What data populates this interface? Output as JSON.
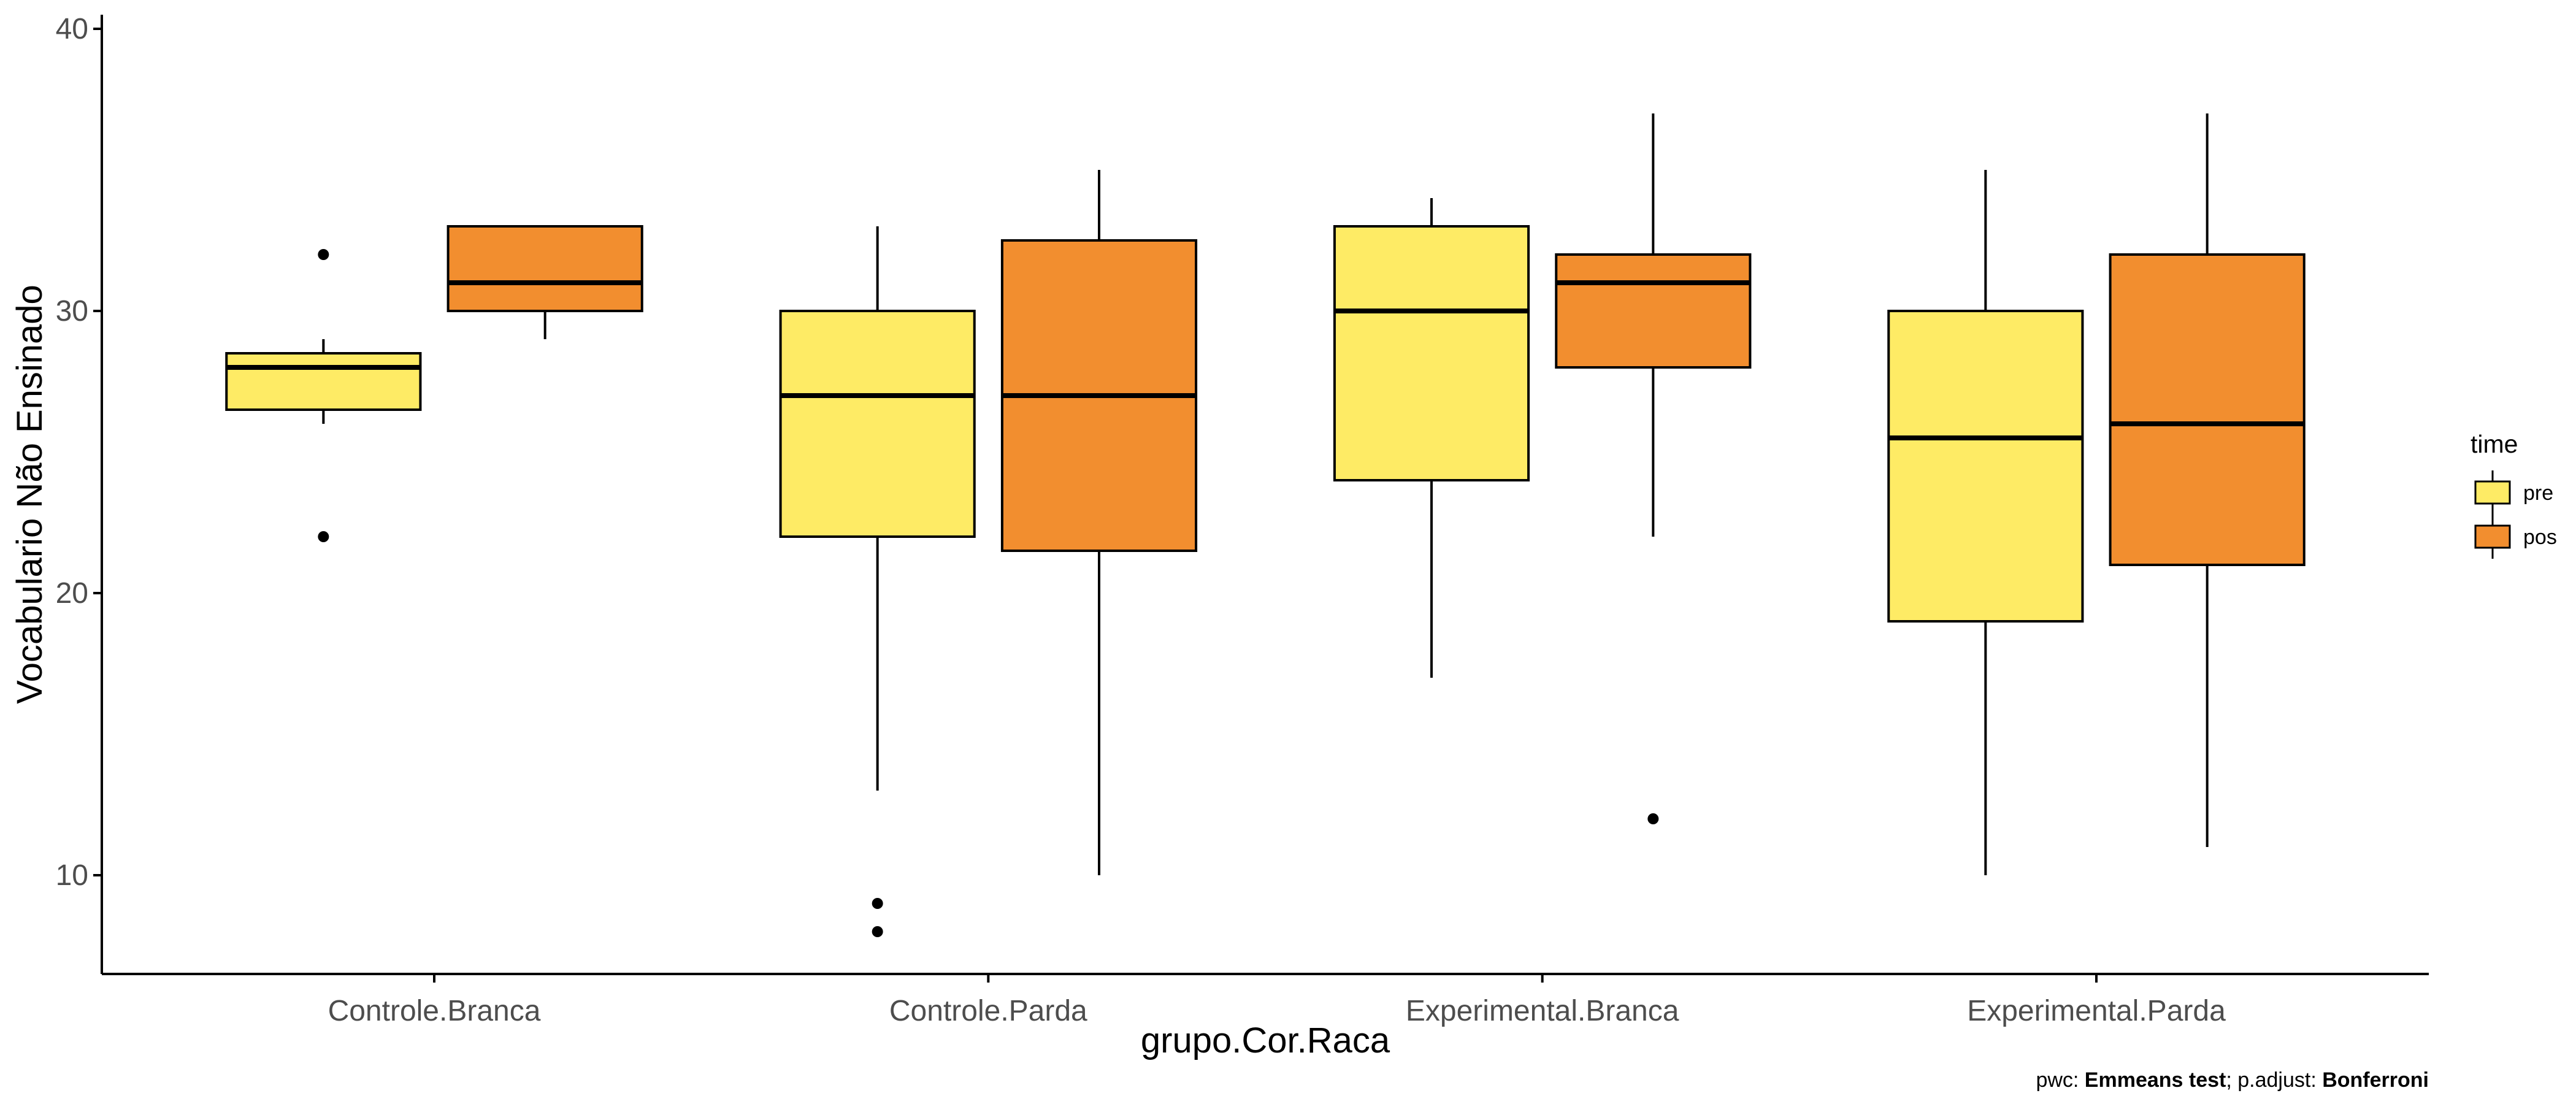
{
  "chart_data": {
    "type": "boxplot",
    "xlabel": "grupo.Cor.Raca",
    "ylabel": "Vocabulario Não Ensinado",
    "categories": [
      "Controle.Branca",
      "Controle.Parda",
      "Experimental.Branca",
      "Experimental.Parda"
    ],
    "ylim": [
      6.5,
      40.5
    ],
    "yticks": [
      10,
      20,
      30,
      40
    ],
    "grid": false,
    "legend": {
      "title": "time",
      "placement": "right",
      "entries": [
        {
          "key": "pre",
          "label": "pre",
          "color": "#FEEB65"
        },
        {
          "key": "pos",
          "label": "pos",
          "color": "#F28E2F"
        }
      ]
    },
    "series": [
      {
        "name": "pre",
        "color": "#FEEB65",
        "boxes": [
          {
            "category": "Controle.Branca",
            "whisker_low": 26,
            "q1": 26.5,
            "median": 28,
            "q3": 28.5,
            "whisker_high": 29,
            "outliers": [
              32,
              22
            ]
          },
          {
            "category": "Controle.Parda",
            "whisker_low": 13,
            "q1": 22,
            "median": 27,
            "q3": 30,
            "whisker_high": 33,
            "outliers": [
              9,
              8
            ]
          },
          {
            "category": "Experimental.Branca",
            "whisker_low": 17,
            "q1": 24,
            "median": 30,
            "q3": 33,
            "whisker_high": 34,
            "outliers": []
          },
          {
            "category": "Experimental.Parda",
            "whisker_low": 10,
            "q1": 19,
            "median": 25.5,
            "q3": 30,
            "whisker_high": 35,
            "outliers": []
          }
        ]
      },
      {
        "name": "pos",
        "color": "#F28E2F",
        "boxes": [
          {
            "category": "Controle.Branca",
            "whisker_low": 29,
            "q1": 30,
            "median": 31,
            "q3": 33,
            "whisker_high": 33,
            "outliers": []
          },
          {
            "category": "Controle.Parda",
            "whisker_low": 10,
            "q1": 21.5,
            "median": 27,
            "q3": 32.5,
            "whisker_high": 35,
            "outliers": []
          },
          {
            "category": "Experimental.Branca",
            "whisker_low": 22,
            "q1": 28,
            "median": 31,
            "q3": 32,
            "whisker_high": 37,
            "outliers": [
              12
            ]
          },
          {
            "category": "Experimental.Parda",
            "whisker_low": 11,
            "q1": 21,
            "median": 26,
            "q3": 32,
            "whisker_high": 37,
            "outliers": []
          }
        ]
      }
    ],
    "caption": {
      "prefix": "pwc: ",
      "test": "Emmeans test",
      "middle": "; p.adjust: ",
      "method": "Bonferroni"
    }
  }
}
